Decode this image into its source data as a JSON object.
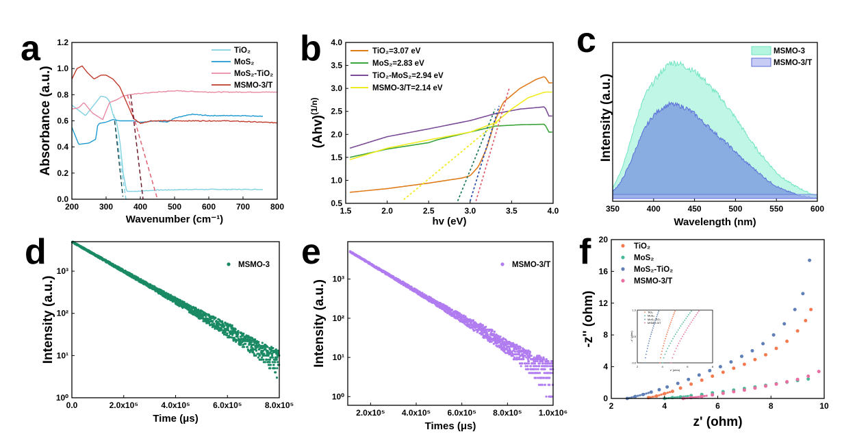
{
  "chart_data": [
    {
      "panel": "a",
      "type": "line",
      "xlabel": "Wavenumber (cm⁻¹)",
      "ylabel": "Absorbance (a.u.)",
      "xlim": [
        200,
        800
      ],
      "ylim": [
        0.0,
        1.2
      ],
      "xticks": [
        "200",
        "300",
        "400",
        "500",
        "600",
        "700",
        "800"
      ],
      "yticks": [
        "0.0",
        "0.2",
        "0.4",
        "0.6",
        "0.8",
        "1.0",
        "1.2"
      ],
      "legend_position": "top-right",
      "series": [
        {
          "name": "TiO₂",
          "color": "#7fd1e1",
          "x": [
            200,
            240,
            270,
            285,
            300,
            310,
            320,
            330,
            340,
            350,
            360,
            380,
            450,
            550,
            650,
            760
          ],
          "y": [
            0.72,
            0.64,
            0.74,
            0.79,
            0.78,
            0.75,
            0.65,
            0.6,
            0.45,
            0.2,
            0.06,
            0.06,
            0.07,
            0.075,
            0.075,
            0.075
          ]
        },
        {
          "name": "MoS₂",
          "color": "#1d9ad1",
          "x": [
            200,
            220,
            250,
            270,
            275,
            280,
            300,
            320,
            340,
            360,
            380,
            400,
            450,
            480,
            500,
            550,
            600,
            700,
            760
          ],
          "y": [
            0.55,
            0.42,
            0.43,
            0.46,
            0.56,
            0.58,
            0.59,
            0.61,
            0.6,
            0.6,
            0.6,
            0.59,
            0.6,
            0.59,
            0.62,
            0.65,
            0.64,
            0.64,
            0.635
          ]
        },
        {
          "name": "MoS₂-TiO₂",
          "color": "#e98aa3",
          "x": [
            200,
            220,
            235,
            260,
            290,
            310,
            330,
            350,
            370,
            400,
            450,
            500,
            600,
            700,
            800
          ],
          "y": [
            0.69,
            0.7,
            0.74,
            0.66,
            0.61,
            0.74,
            0.76,
            0.79,
            0.8,
            0.81,
            0.82,
            0.83,
            0.82,
            0.82,
            0.82
          ]
        },
        {
          "name": "MSMO-3/T",
          "color": "#c0392b",
          "x": [
            200,
            215,
            230,
            245,
            265,
            285,
            300,
            320,
            340,
            360,
            380,
            400,
            430,
            480,
            550,
            650,
            800
          ],
          "y": [
            0.92,
            1.0,
            1.02,
            0.97,
            0.92,
            0.95,
            0.95,
            0.92,
            0.86,
            0.74,
            0.62,
            0.58,
            0.6,
            0.6,
            0.6,
            0.6,
            0.585
          ]
        }
      ],
      "tangents": [
        {
          "color": "#7fd1e1",
          "x": [
            322,
            358
          ],
          "y": [
            0.65,
            0.0
          ]
        },
        {
          "color": "#1a4d52",
          "x": [
            325,
            349
          ],
          "y": [
            0.6,
            0.02
          ]
        },
        {
          "color": "#e06070",
          "x": [
            362,
            450
          ],
          "y": [
            0.8,
            0.0
          ]
        },
        {
          "color": "#6e1b2c",
          "x": [
            372,
            408
          ],
          "y": [
            0.8,
            0.0
          ]
        }
      ]
    },
    {
      "panel": "b",
      "type": "line",
      "xlabel": "hv (eV)",
      "ylabel": "(Ahv)^(1/n)",
      "ylabel_base": "(Ahv)",
      "ylabel_sup": "(1/n)",
      "xlim": [
        1.5,
        4.0
      ],
      "ylim": [
        0.5,
        4.0
      ],
      "xticks": [
        "1.5",
        "2.0",
        "2.5",
        "3.0",
        "3.5",
        "4.0"
      ],
      "yticks": [
        "0.5",
        "1.0",
        "1.5",
        "2.0",
        "2.5",
        "3.0",
        "3.5",
        "4.0"
      ],
      "legend_position": "top-left",
      "series": [
        {
          "name": "TiO₂=3.07 eV",
          "color": "#e07b1a",
          "x": [
            1.55,
            2.0,
            2.5,
            2.9,
            3.0,
            3.1,
            3.2,
            3.3,
            3.4,
            3.6,
            3.8,
            3.9,
            3.95,
            4.0
          ],
          "y": [
            0.74,
            0.82,
            0.94,
            1.05,
            1.1,
            1.3,
            1.7,
            2.3,
            2.7,
            3.0,
            3.2,
            3.26,
            3.12,
            3.12
          ]
        },
        {
          "name": "MoS₂=2.83 eV",
          "color": "#3aa43a",
          "x": [
            1.55,
            2.0,
            2.5,
            2.6,
            3.0,
            3.3,
            3.6,
            3.9,
            3.95,
            4.0
          ],
          "y": [
            1.5,
            1.68,
            1.82,
            1.88,
            2.05,
            2.18,
            2.21,
            2.22,
            2.05,
            2.05
          ]
        },
        {
          "name": "TiO₂-MoS₂=2.94 eV",
          "color": "#7a4b96",
          "x": [
            1.55,
            2.0,
            2.5,
            3.0,
            3.3,
            3.6,
            3.9,
            3.95,
            4.0
          ],
          "y": [
            1.7,
            1.95,
            2.12,
            2.3,
            2.45,
            2.55,
            2.6,
            2.4,
            2.4
          ]
        },
        {
          "name": "MSMO-3/T=2.14 eV",
          "color": "#f1ec1c",
          "x": [
            1.55,
            2.0,
            2.5,
            3.0,
            3.3,
            3.5,
            3.7,
            3.9,
            4.0
          ],
          "y": [
            1.45,
            1.7,
            1.88,
            2.05,
            2.25,
            2.55,
            2.8,
            2.92,
            2.92
          ]
        }
      ],
      "tangents": [
        {
          "color": "#e06070",
          "x": [
            3.07,
            3.47
          ],
          "y": [
            0.55,
            3.0
          ]
        },
        {
          "color": "#1f7a5c",
          "x": [
            2.85,
            3.3
          ],
          "y": [
            0.55,
            2.55
          ]
        },
        {
          "color": "#2e4fb0",
          "x": [
            3.0,
            3.35
          ],
          "y": [
            0.55,
            2.62
          ]
        },
        {
          "color": "#f1ec1c",
          "x": [
            2.2,
            3.35
          ],
          "y": [
            0.58,
            2.3
          ]
        }
      ]
    },
    {
      "panel": "c",
      "type": "area",
      "xlabel": "Wavelength (nm)",
      "ylabel": "Intensity (a.u.)",
      "xlim": [
        350,
        600
      ],
      "xticks": [
        "350",
        "400",
        "450",
        "500",
        "550",
        "600"
      ],
      "legend_position": "top-right",
      "series": [
        {
          "name": "MSMO-3",
          "color": "#9ff2da",
          "x": [
            350,
            360,
            370,
            380,
            390,
            400,
            410,
            420,
            430,
            440,
            450,
            460,
            470,
            480,
            490,
            500,
            510,
            520,
            530,
            540,
            550,
            560,
            570,
            580,
            590,
            600
          ],
          "y": [
            0.08,
            0.2,
            0.38,
            0.6,
            0.76,
            0.85,
            0.93,
            0.99,
            0.99,
            0.96,
            0.93,
            0.88,
            0.81,
            0.75,
            0.67,
            0.59,
            0.5,
            0.41,
            0.33,
            0.26,
            0.19,
            0.14,
            0.1,
            0.07,
            0.04,
            0.02
          ]
        },
        {
          "name": "MSMO-3/T",
          "color": "#8090e0",
          "x": [
            350,
            360,
            370,
            380,
            390,
            400,
            410,
            420,
            430,
            440,
            450,
            460,
            470,
            480,
            490,
            500,
            510,
            520,
            530,
            540,
            550,
            560,
            570,
            580,
            590,
            600
          ],
          "y": [
            0.05,
            0.12,
            0.24,
            0.39,
            0.52,
            0.61,
            0.66,
            0.69,
            0.68,
            0.66,
            0.62,
            0.56,
            0.51,
            0.45,
            0.4,
            0.34,
            0.28,
            0.23,
            0.18,
            0.13,
            0.09,
            0.06,
            0.04,
            0.02,
            0.01,
            0.0
          ]
        }
      ]
    },
    {
      "panel": "d",
      "type": "scatter",
      "xlabel": "Time (μs)",
      "ylabel": "Intensity (a.u.)",
      "xlim": [
        0,
        800000
      ],
      "ylim": [
        1,
        5000
      ],
      "yscale": "log",
      "xticks": [
        "0.0",
        "2.0x10⁵",
        "4.0x10⁵",
        "6.0x10⁵",
        "8.0x10⁵"
      ],
      "yticks": [
        "10⁰",
        "10¹",
        "10²",
        "10³"
      ],
      "legend_position": "top-right",
      "series": [
        {
          "name": "MSMO-3",
          "color": "#1a8a64",
          "decay": {
            "x0": 0,
            "y0": 5000,
            "x1": 800000,
            "y1": 8
          }
        }
      ]
    },
    {
      "panel": "e",
      "type": "scatter",
      "xlabel": "Times (μs)",
      "ylabel": "Intensity (a.u.)",
      "xlim": [
        100000,
        1000000
      ],
      "ylim": [
        0.6,
        9000
      ],
      "yscale": "log",
      "xticks": [
        "2.0x10⁵",
        "4.0x10⁵",
        "6.0x10⁵",
        "8.0x10⁵",
        "1.0x10⁶"
      ],
      "yticks": [
        "10⁰",
        "10¹",
        "10²",
        "10³"
      ],
      "legend_position": "top-right",
      "series": [
        {
          "name": "MSMO-3/T",
          "color": "#b07cf0",
          "decay": {
            "x0": 110000,
            "y0": 5000,
            "x1": 1000000,
            "y1": 4
          }
        }
      ]
    },
    {
      "panel": "f",
      "type": "scatter",
      "xlabel": "z' (ohm)",
      "ylabel": "-z'' (ohm)",
      "xlim": [
        2,
        10
      ],
      "ylim": [
        0,
        20
      ],
      "xticks": [
        "2",
        "4",
        "6",
        "8",
        "10"
      ],
      "yticks": [
        "0",
        "4",
        "8",
        "12",
        "16",
        "20"
      ],
      "legend_position": "top-left",
      "series": [
        {
          "name": "TiO₂",
          "color": "#f47a50",
          "x": [
            3.4,
            3.7,
            4.0,
            4.3,
            4.6,
            5.0,
            5.4,
            5.8,
            6.2,
            6.6,
            7.0,
            7.4,
            7.8,
            8.2,
            8.6,
            9.0,
            9.3,
            9.5
          ],
          "y": [
            0.1,
            0.3,
            0.6,
            0.9,
            1.3,
            1.8,
            2.3,
            2.8,
            3.3,
            3.8,
            4.3,
            4.9,
            5.5,
            6.3,
            7.2,
            8.5,
            9.8,
            11.2
          ]
        },
        {
          "name": "MoS₂",
          "color": "#4cb89a",
          "x": [
            4.0,
            4.3,
            4.6,
            5.0,
            5.4,
            5.8,
            6.2,
            6.6,
            7.0,
            7.4,
            7.8,
            8.2,
            8.6,
            9.0,
            9.4
          ],
          "y": [
            0.0,
            0.1,
            0.2,
            0.35,
            0.5,
            0.7,
            0.85,
            1.05,
            1.25,
            1.45,
            1.65,
            1.85,
            2.05,
            2.25,
            2.45
          ]
        },
        {
          "name": "MoS₂-TiO₂",
          "color": "#5f7fb6",
          "x": [
            2.6,
            2.9,
            3.2,
            3.5,
            3.8,
            4.1,
            4.5,
            4.9,
            5.3,
            5.7,
            6.1,
            6.5,
            6.9,
            7.3,
            7.7,
            8.1,
            8.5,
            8.9,
            9.2,
            9.45
          ],
          "y": [
            0.0,
            0.25,
            0.5,
            0.8,
            1.1,
            1.45,
            1.9,
            2.4,
            2.95,
            3.5,
            4.0,
            4.6,
            5.3,
            6.0,
            6.9,
            8.0,
            9.4,
            11.2,
            13.2,
            17.4
          ]
        },
        {
          "name": "MSMO-3/T",
          "color": "#e86fa0",
          "x": [
            4.7,
            5.0,
            5.4,
            5.8,
            6.2,
            6.6,
            7.0,
            7.4,
            7.8,
            8.2,
            8.6,
            9.0,
            9.4,
            9.8
          ],
          "y": [
            0.0,
            0.1,
            0.25,
            0.45,
            0.65,
            0.85,
            1.05,
            1.3,
            1.55,
            1.8,
            2.1,
            2.4,
            2.8,
            3.4
          ]
        }
      ],
      "inset": {
        "xlim": [
          2,
          8
        ],
        "ylim": [
          0,
          1.0
        ],
        "xticks": [
          "2",
          "4",
          "6",
          "8"
        ],
        "yticks": [
          "0.0",
          "0.5",
          "1.0"
        ],
        "xlabel": "z' (ohm)",
        "ylabel": "-z'' (ohm)"
      }
    }
  ],
  "panel_labels": [
    "a",
    "b",
    "c",
    "d",
    "e",
    "f"
  ]
}
